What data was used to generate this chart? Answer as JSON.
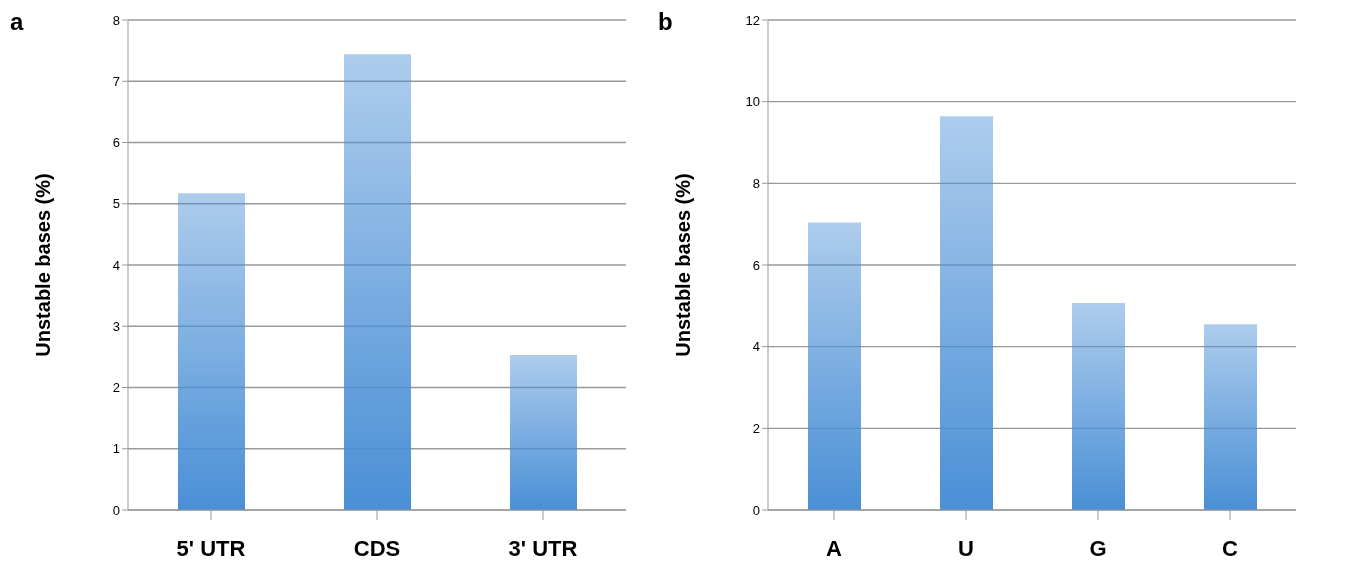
{
  "chart_data": [
    {
      "type": "bar",
      "title": "a",
      "ylabel": "Unstable bases (%)",
      "categories": [
        "5' UTR",
        "CDS",
        "3' UTR"
      ],
      "values": [
        5.17,
        7.44,
        2.53
      ],
      "color": "#4a8fd6",
      "ylim": [
        0,
        8
      ],
      "yticks": [
        0,
        1,
        2,
        3,
        4,
        5,
        6,
        7,
        8
      ],
      "grid": "y"
    },
    {
      "type": "bar",
      "title": "b",
      "ylabel": "Unstable bases (%)",
      "categories": [
        "A",
        "U",
        "G",
        "C"
      ],
      "values": [
        7.04,
        9.64,
        5.07,
        4.55
      ],
      "color": "#4a8fd6",
      "ylim": [
        0,
        12
      ],
      "yticks": [
        0,
        2,
        4,
        6,
        8,
        10,
        12
      ],
      "grid": "y"
    }
  ]
}
